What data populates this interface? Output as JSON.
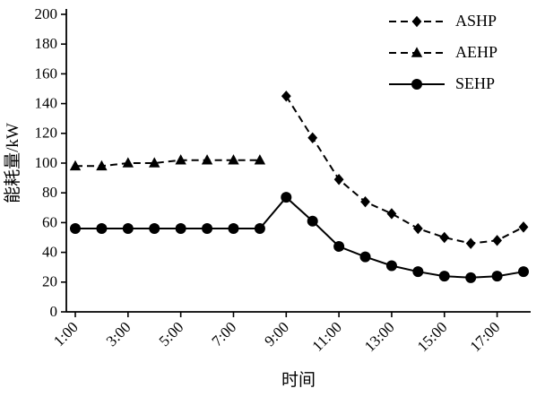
{
  "chart_data": {
    "type": "line",
    "title": "",
    "xlabel": "时间",
    "ylabel": "能耗量/kW",
    "ylim": [
      0,
      200
    ],
    "ytick_step": 20,
    "xlim_hours": [
      1,
      18
    ],
    "xtick_hours": [
      1,
      3,
      5,
      7,
      9,
      11,
      13,
      15,
      17
    ],
    "xtick_labels": [
      "1:00",
      "3:00",
      "5:00",
      "7:00",
      "9:00",
      "11:00",
      "13:00",
      "15:00",
      "17:00"
    ],
    "grid": "off",
    "legend_position": "top-right",
    "line_color": "#000000",
    "background_color": "#ffffff",
    "series": [
      {
        "name": "ASHP",
        "marker": "diamond",
        "line": "dashed",
        "points": [
          [
            9,
            145
          ],
          [
            10,
            117
          ],
          [
            11,
            89
          ],
          [
            12,
            74
          ],
          [
            13,
            66
          ],
          [
            14,
            56
          ],
          [
            15,
            50
          ],
          [
            16,
            46
          ],
          [
            17,
            48
          ],
          [
            18,
            57
          ]
        ]
      },
      {
        "name": "AEHP",
        "marker": "triangle",
        "line": "dashed",
        "points": [
          [
            1,
            98
          ],
          [
            2,
            98
          ],
          [
            3,
            100
          ],
          [
            4,
            100
          ],
          [
            5,
            102
          ],
          [
            6,
            102
          ],
          [
            7,
            102
          ],
          [
            8,
            102
          ]
        ]
      },
      {
        "name": "SEHP",
        "marker": "circle",
        "line": "solid",
        "points": [
          [
            1,
            56
          ],
          [
            2,
            56
          ],
          [
            3,
            56
          ],
          [
            4,
            56
          ],
          [
            5,
            56
          ],
          [
            6,
            56
          ],
          [
            7,
            56
          ],
          [
            8,
            56
          ],
          [
            9,
            77
          ],
          [
            10,
            61
          ],
          [
            11,
            44
          ],
          [
            12,
            37
          ],
          [
            13,
            31
          ],
          [
            14,
            27
          ],
          [
            15,
            24
          ],
          [
            16,
            23
          ],
          [
            17,
            24
          ],
          [
            18,
            27
          ]
        ]
      }
    ]
  }
}
